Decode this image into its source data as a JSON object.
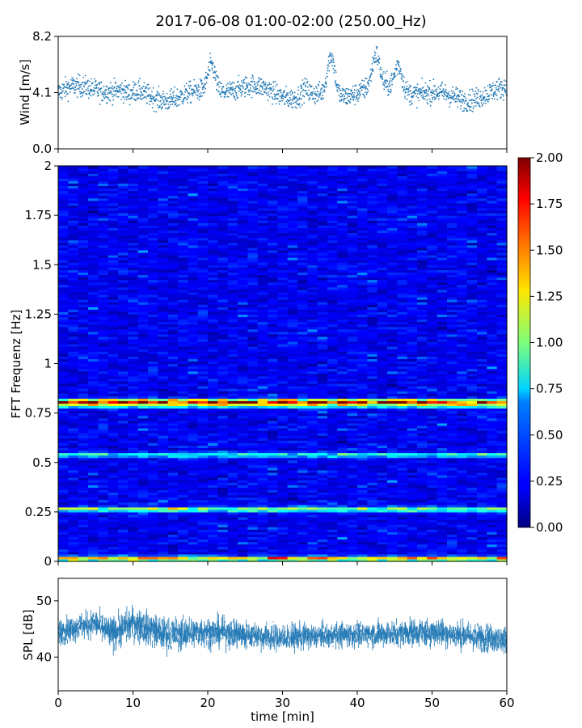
{
  "title": "2017-06-08 01:00-02:00 (250.00_Hz)",
  "chart_data": [
    {
      "type": "scatter",
      "name": "wind",
      "ylabel": "Wind [m/s]",
      "xlim": [
        0,
        60
      ],
      "ylim": [
        0.0,
        8.2
      ],
      "yticks": [
        0.0,
        4.1,
        8.2
      ],
      "ytick_labels": [
        "0.0",
        "4.1",
        "8.2"
      ],
      "grid": false,
      "color": "#1f77b4",
      "mean": 4.1,
      "features": [
        {
          "t": 9.5,
          "level": 5.0
        },
        {
          "t": 20.5,
          "level": 7.2
        },
        {
          "t": 33.0,
          "level": 5.8
        },
        {
          "t": 36.5,
          "level": 8.2
        },
        {
          "t": 42.5,
          "level": 7.5
        },
        {
          "t": 45.5,
          "level": 7.1
        }
      ]
    },
    {
      "type": "heatmap",
      "name": "spectrogram",
      "ylabel": "FFT Frequenz [Hz]",
      "xlim": [
        0,
        60
      ],
      "ylim": [
        0,
        2
      ],
      "yticks": [
        0,
        0.25,
        0.5,
        0.75,
        1,
        1.25,
        1.5,
        1.75,
        2
      ],
      "ytick_labels": [
        "0",
        "0.25",
        "0.5",
        "0.75",
        "1",
        "1.25",
        "1.5",
        "1.75",
        "2"
      ],
      "colormap": "jet",
      "colorbar": {
        "range": [
          0.0,
          2.0
        ],
        "ticks": [
          "0.00",
          "0.25",
          "0.50",
          "0.75",
          "1.00",
          "1.25",
          "1.50",
          "1.75",
          "2.00"
        ]
      },
      "bands": [
        {
          "freq": 0.81,
          "level": 1.55
        },
        {
          "freq": 0.79,
          "level": 0.8
        },
        {
          "freq": 0.54,
          "level": 0.6
        },
        {
          "freq": 0.265,
          "level": 0.85
        },
        {
          "freq": 0.015,
          "level": 1.2
        }
      ]
    },
    {
      "type": "area",
      "name": "spl",
      "ylabel": "SPL [dB]",
      "xlabel": "time [min]",
      "xlim": [
        0,
        60
      ],
      "ylim": [
        34,
        54
      ],
      "yticks": [
        40,
        50
      ],
      "ytick_labels": [
        "40",
        "50"
      ],
      "xticks": [
        0,
        10,
        20,
        30,
        40,
        50,
        60
      ],
      "xtick_labels": [
        "0",
        "10",
        "20",
        "30",
        "40",
        "50",
        "60"
      ],
      "color": "#1f77b4",
      "envelope": [
        {
          "t": 0,
          "low": 40,
          "high": 48,
          "mean": 44.5
        },
        {
          "t": 5,
          "low": 41,
          "high": 50,
          "mean": 46
        },
        {
          "t": 7,
          "low": 38,
          "high": 49,
          "mean": 44
        },
        {
          "t": 10,
          "low": 40,
          "high": 51,
          "mean": 46
        },
        {
          "t": 14,
          "low": 38,
          "high": 49,
          "mean": 44
        },
        {
          "t": 20,
          "low": 39,
          "high": 49,
          "mean": 44.5
        },
        {
          "t": 30,
          "low": 39,
          "high": 47.5,
          "mean": 43.5
        },
        {
          "t": 40,
          "low": 40,
          "high": 48,
          "mean": 44
        },
        {
          "t": 50,
          "low": 40,
          "high": 49,
          "mean": 44.5
        },
        {
          "t": 60,
          "low": 38,
          "high": 47,
          "mean": 43
        }
      ]
    }
  ]
}
